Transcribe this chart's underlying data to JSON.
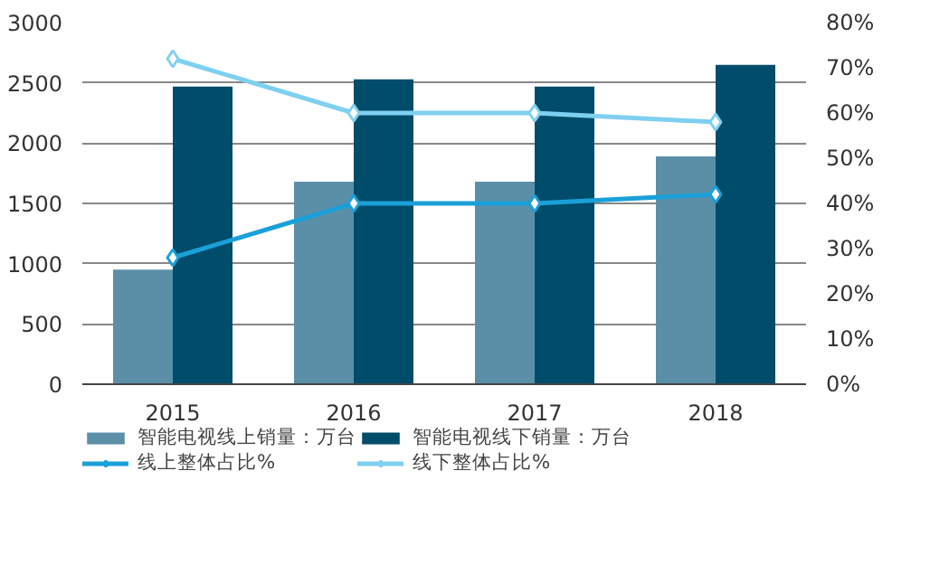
{
  "chart_data": {
    "type": "bar",
    "categories": [
      "2015",
      "2016",
      "2017",
      "2018"
    ],
    "series": [
      {
        "name": "智能电视线上销量：万台",
        "color": "#5b8fa8",
        "values": [
          950,
          1680,
          1680,
          1890
        ]
      },
      {
        "name": "智能电视线下销量：万台",
        "color": "#004c6b",
        "values": [
          2470,
          2530,
          2470,
          2650
        ]
      },
      {
        "name": "线上整体占比%",
        "type": "line",
        "axis": "y2",
        "color": "#1aa0d8",
        "marker": "diamond",
        "values": [
          28,
          40,
          40,
          42
        ]
      },
      {
        "name": "线下整体占比%",
        "type": "line",
        "axis": "y2",
        "color": "#7fd0f0",
        "marker": "diamond",
        "values": [
          72,
          60,
          60,
          58
        ]
      }
    ],
    "ylim": [
      0,
      3000
    ],
    "yticks": [
      0,
      500,
      1000,
      1500,
      2000,
      2500,
      3000
    ],
    "y2lim": [
      0,
      80
    ],
    "y2ticks": [
      {
        "value": 0,
        "label": "0%"
      },
      {
        "value": 10,
        "label": "10%"
      },
      {
        "value": 20,
        "label": "20%"
      },
      {
        "value": 30,
        "label": "30%"
      },
      {
        "value": 40,
        "label": "40%"
      },
      {
        "value": 50,
        "label": "50%"
      },
      {
        "value": 60,
        "label": "60%"
      },
      {
        "value": 70,
        "label": "70%"
      },
      {
        "value": 80,
        "label": "80%"
      }
    ],
    "grid": "y",
    "legend": "bottom"
  }
}
